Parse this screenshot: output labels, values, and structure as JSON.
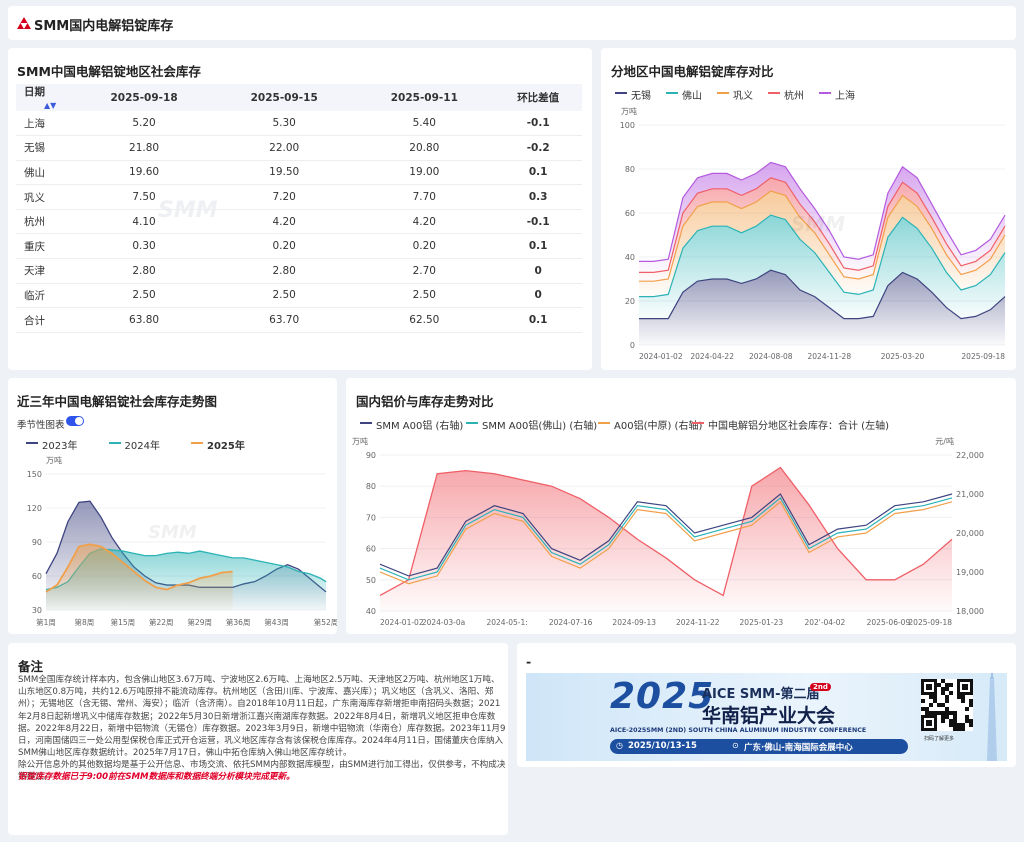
{
  "header": {
    "title": "SMM国内电解铝锭库存"
  },
  "table": {
    "title": "SMM中国电解铝锭地区社会库存",
    "columns": [
      "日期",
      "2025-09-18",
      "2025-09-15",
      "2025-09-11",
      "环比差值"
    ],
    "rows": [
      {
        "region": "上海",
        "d1": "5.20",
        "d2": "5.30",
        "d3": "5.40",
        "diff": "-0.1",
        "trend": "dn"
      },
      {
        "region": "无锡",
        "d1": "21.80",
        "d2": "22.00",
        "d3": "20.80",
        "diff": "-0.2",
        "trend": "dn"
      },
      {
        "region": "佛山",
        "d1": "19.60",
        "d2": "19.50",
        "d3": "19.00",
        "diff": "0.1",
        "trend": "up"
      },
      {
        "region": "巩义",
        "d1": "7.50",
        "d2": "7.20",
        "d3": "7.70",
        "diff": "0.3",
        "trend": "up"
      },
      {
        "region": "杭州",
        "d1": "4.10",
        "d2": "4.20",
        "d3": "4.20",
        "diff": "-0.1",
        "trend": "dn"
      },
      {
        "region": "重庆",
        "d1": "0.30",
        "d2": "0.20",
        "d3": "0.20",
        "diff": "0.1",
        "trend": "up"
      },
      {
        "region": "天津",
        "d1": "2.80",
        "d2": "2.80",
        "d3": "2.70",
        "diff": "0",
        "trend": "zero"
      },
      {
        "region": "临沂",
        "d1": "2.50",
        "d2": "2.50",
        "d3": "2.50",
        "diff": "0",
        "trend": "zero"
      },
      {
        "region": "合计",
        "d1": "63.80",
        "d2": "63.70",
        "d3": "62.50",
        "diff": "0.1",
        "trend": "up"
      }
    ]
  },
  "watermark": "SMM",
  "colors": {
    "wuxi": "#3e4480",
    "foshan": "#2bb3b6",
    "gongyi": "#f1a04a",
    "hangzhou": "#ef5f67",
    "shanghai": "#b45adf",
    "y2023": "#3e4480",
    "y2024": "#2bb3b6",
    "y2025": "#f1a04a",
    "price": "#3e4480",
    "price_fs": "#2bb3b6",
    "price_zy": "#f1a04a",
    "inv": "#ef5f67"
  },
  "chart_data": [
    {
      "type": "area",
      "title": "分地区中国电解铝锭库存对比",
      "ylabel": "万吨",
      "ylim": [
        0,
        100
      ],
      "yticks": [
        "0",
        "20",
        "40",
        "60",
        "80",
        "100"
      ],
      "xticks": [
        "2024-01-02",
        "2024-04-22",
        "2024-08-08",
        "2024-11-28",
        "2025-03-20",
        "2025-09-18"
      ],
      "stacked": true,
      "legend": [
        "无锡",
        "佛山",
        "巩义",
        "杭州",
        "上海"
      ],
      "x": [
        "2024-01-02",
        "2024-02-05",
        "2024-02-26",
        "2024-03-11",
        "2024-04-01",
        "2024-04-22",
        "2024-05-20",
        "2024-06-17",
        "2024-07-15",
        "2024-08-08",
        "2024-09-05",
        "2024-10-10",
        "2024-11-07",
        "2024-11-28",
        "2024-12-26",
        "2025-01-16",
        "2025-02-06",
        "2025-02-20",
        "2025-03-20",
        "2025-04-17",
        "2025-05-15",
        "2025-06-12",
        "2025-07-10",
        "2025-08-07",
        "2025-09-04",
        "2025-09-18"
      ],
      "series": [
        {
          "name": "无锡",
          "values": [
            12,
            12,
            12,
            24,
            29,
            30,
            30,
            28,
            30,
            34,
            32,
            25,
            22,
            17,
            12,
            12,
            13,
            27,
            33,
            30,
            24,
            17,
            12,
            13,
            16,
            22
          ]
        },
        {
          "name": "佛山",
          "values": [
            10,
            10,
            11,
            20,
            23,
            24,
            24,
            23,
            24,
            25,
            25,
            23,
            20,
            16,
            12,
            11,
            12,
            22,
            25,
            23,
            20,
            16,
            13,
            14,
            16,
            20
          ]
        },
        {
          "name": "巩义",
          "values": [
            7,
            7,
            7,
            10,
            11,
            11,
            11,
            11,
            11,
            11,
            11,
            10,
            9,
            8,
            7,
            7,
            7,
            9,
            10,
            10,
            9,
            8,
            7,
            7,
            7,
            8
          ]
        },
        {
          "name": "杭州",
          "values": [
            4,
            4,
            4,
            6,
            6,
            6,
            6,
            6,
            6,
            6,
            6,
            6,
            5,
            5,
            4,
            4,
            4,
            5,
            6,
            6,
            5,
            5,
            4,
            4,
            4,
            4
          ]
        },
        {
          "name": "上海",
          "values": [
            5,
            5,
            5,
            7,
            7,
            7,
            7,
            7,
            7,
            7,
            7,
            7,
            6,
            6,
            5,
            5,
            5,
            6,
            7,
            7,
            6,
            6,
            5,
            5,
            5,
            5
          ]
        }
      ]
    },
    {
      "type": "area",
      "title": "近三年中国电解铝锭社会库存走势图",
      "toggle_label": "季节性图表",
      "ylabel": "万吨",
      "ylim": [
        30,
        150
      ],
      "yticks": [
        "30",
        "60",
        "90",
        "120",
        "150"
      ],
      "xticks": [
        "第1周",
        "第8周",
        "第15周",
        "第22周",
        "第29周",
        "第36周",
        "第43周",
        "第52周"
      ],
      "legend": [
        "2023年",
        "2024年",
        "2025年"
      ],
      "weeks": [
        1,
        3,
        5,
        7,
        9,
        11,
        13,
        15,
        17,
        19,
        21,
        23,
        25,
        27,
        29,
        31,
        33,
        35,
        37,
        39,
        41,
        43,
        45,
        47,
        49,
        51,
        52
      ],
      "series": [
        {
          "name": "2023年",
          "values": [
            62,
            80,
            108,
            125,
            126,
            112,
            94,
            80,
            68,
            60,
            54,
            52,
            52,
            52,
            50,
            50,
            50,
            50,
            53,
            55,
            60,
            66,
            70,
            66,
            58,
            50,
            46
          ]
        },
        {
          "name": "2024年",
          "values": [
            48,
            50,
            55,
            68,
            80,
            84,
            83,
            82,
            80,
            78,
            78,
            80,
            81,
            80,
            82,
            80,
            78,
            76,
            76,
            74,
            72,
            70,
            68,
            64,
            62,
            58,
            55
          ]
        },
        {
          "name": "2025年",
          "values": [
            46,
            52,
            68,
            86,
            88,
            86,
            80,
            72,
            64,
            56,
            50,
            48,
            52,
            54,
            58,
            60,
            63,
            64
          ]
        }
      ]
    },
    {
      "type": "line",
      "title": "国内铝价与库存走势对比",
      "ylabel_left": "万吨",
      "ylabel_right": "元/吨",
      "ylim_left": [
        40,
        90
      ],
      "ylim_right": [
        18000,
        22000
      ],
      "yticks_left": [
        "40",
        "50",
        "60",
        "70",
        "80",
        "90"
      ],
      "yticks_right": [
        "18,000",
        "19,000",
        "20,000",
        "21,000",
        "22,000"
      ],
      "xticks": [
        "2024-01-02",
        "2024-03-0a",
        "2024-05-1:",
        "2024-07-16",
        "2024-09-13",
        "2024-11-22",
        "2025-01-23",
        "202'-04-02",
        "2025-06-09",
        "2025-09-18"
      ],
      "legend": [
        "SMM A00铝 (右轴)",
        "SMM A00铝(佛山) (右轴)",
        "A00铝(中原) (右轴)",
        "中国电解铝分地区社会库存：合计 (左轴)"
      ],
      "x": [
        "2024-01",
        "2024-02",
        "2024-03",
        "2024-04",
        "2024-05",
        "2024-06",
        "2024-07",
        "2024-08",
        "2024-09",
        "2024-10",
        "2024-11",
        "2024-12",
        "2025-01",
        "2025-02",
        "2025-03",
        "2025-04",
        "2025-05",
        "2025-06",
        "2025-07",
        "2025-08",
        "2025-09"
      ],
      "series": [
        {
          "name": "SMM A00铝 (右轴)",
          "axis": "right",
          "values": [
            19200,
            18900,
            19100,
            20300,
            20700,
            20500,
            19600,
            19300,
            19800,
            20800,
            20700,
            20000,
            20200,
            20400,
            21000,
            19700,
            20100,
            20200,
            20700,
            20800,
            21000
          ]
        },
        {
          "name": "SMM A00铝(佛山) (右轴)",
          "axis": "right",
          "values": [
            19100,
            18800,
            19000,
            20200,
            20600,
            20400,
            19500,
            19200,
            19700,
            20700,
            20600,
            19900,
            20100,
            20300,
            20900,
            19600,
            20000,
            20100,
            20600,
            20700,
            20900
          ]
        },
        {
          "name": "A00铝(中原) (右轴)",
          "axis": "right",
          "values": [
            19000,
            18700,
            18900,
            20100,
            20500,
            20300,
            19400,
            19100,
            19600,
            20600,
            20500,
            19800,
            20000,
            20200,
            20800,
            19500,
            19900,
            20000,
            20500,
            20600,
            20800
          ]
        },
        {
          "name": "中国电解铝分地区社会库存：合计 (左轴)",
          "axis": "left",
          "values": [
            45,
            50,
            84,
            85,
            84,
            82,
            80,
            76,
            70,
            63,
            57,
            50,
            45,
            80,
            86,
            74,
            60,
            50,
            50,
            55,
            63
          ]
        }
      ]
    }
  ],
  "notes": {
    "title": "备注",
    "p1": "SMM全国库存统计样本内，包含佛山地区3.67万吨、宁波地区2.6万吨、上海地区2.5万吨、天津地区2万吨、杭州地区1万吨、山东地区0.8万吨，共约12.6万吨原排不能流动库存。杭州地区（含田川库、宁波库、嘉兴库）；巩义地区（含巩义、洛阳、郑州）；无锡地区（含无锡、常州、海安）；临沂（含济南）。自2018年10月11日起，广东南海库存新增拒申南招码头数据；2021年2月8日起新增巩义中储库存数据；2022年5月30日新增浙江嘉兴南湖库存数据。2022年8月4日，新增巩义地区拒申仓库数据。2022年8月22日，新增中铝物流（无锡仓）库存数据。2023年3月9日，新增中铝物流（华南仓）库存数据。2023年11月9日，河南国储四三一处公用型保税仓库正式开仓运营，巩义地区库存含有该保税仓库库存。2024年4月11日，国储董庆仓库纳入SMM佛山地区库存数据统计。2025年7月17日，佛山中拓仓库纳入佛山地区库存统计。",
    "p2": "除公开信息外的其他数据均是基于公开信息、市场交流、依托SMM内部数据库模型，由SMM进行加工得出，仅供参考，不构成决策建议。",
    "p3": "铝锭库存数据已于9:00前在SMM数据库和数据终端分析模块完成更新。"
  },
  "banner": {
    "panel_title": "-",
    "year": "2025",
    "line1": "AICE SMM-第二届",
    "edition_mark": "2nd",
    "line2": "华南铝产业大会",
    "line3": "AICE-2025SMM (2ND) SOUTH CHINA ALUMINUM INDUSTRY CONFERENCE",
    "date": "2025/10/13-15",
    "venue": "广东·佛山-南海国际会展中心",
    "qr_caption": "扫码了解更多"
  }
}
